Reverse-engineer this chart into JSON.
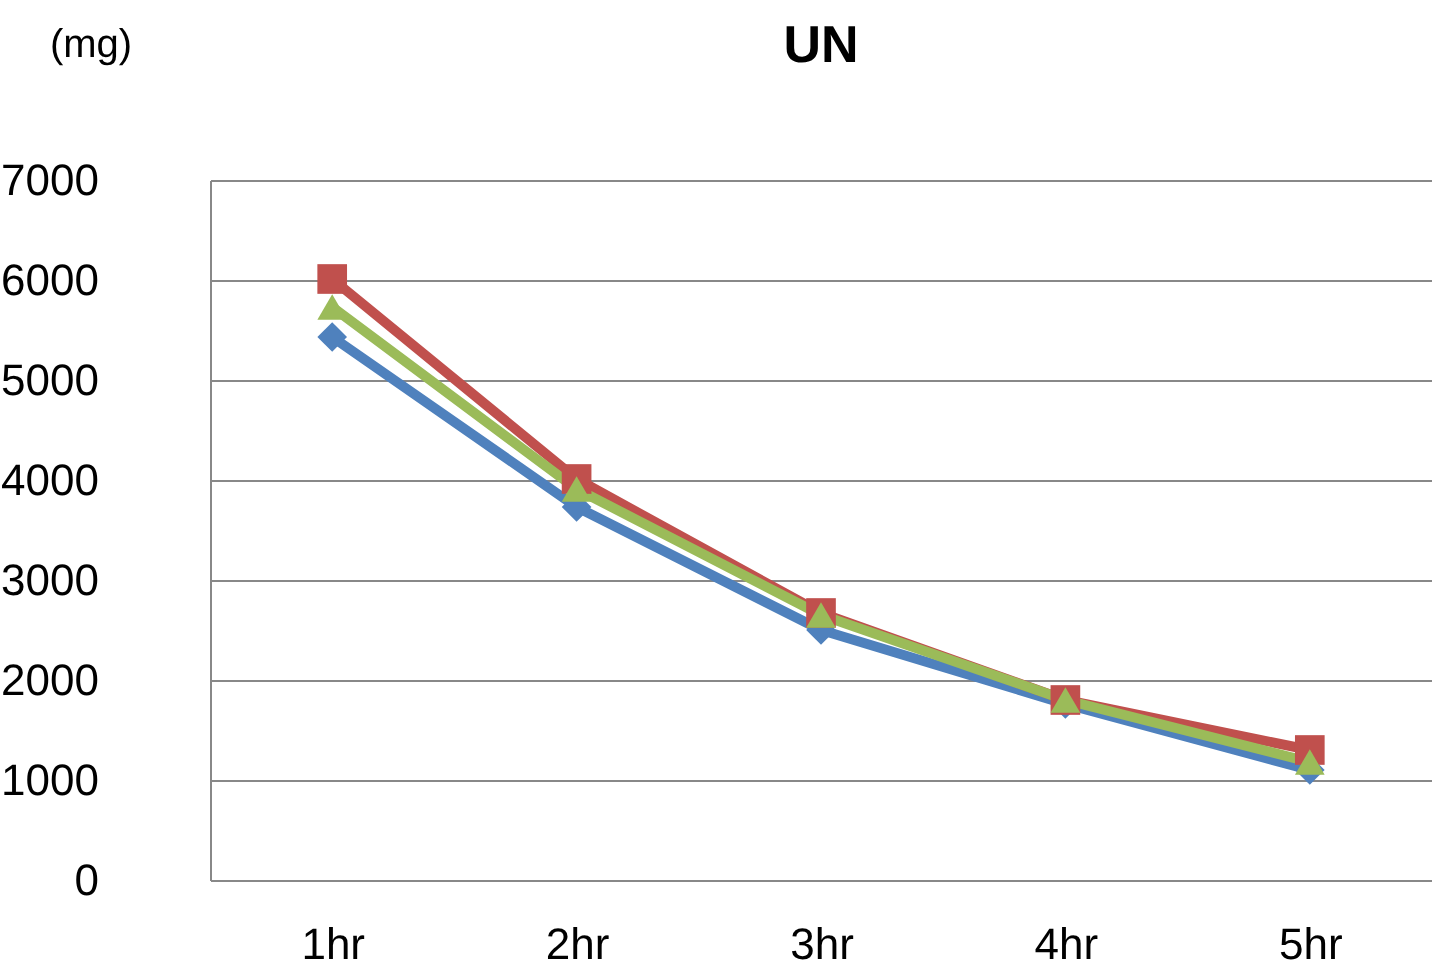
{
  "chart_data": {
    "type": "line",
    "title": "UN",
    "ylabel": "(mg)",
    "categories": [
      "1hr",
      "2hr",
      "3hr",
      "4hr",
      "5hr"
    ],
    "series": [
      {
        "color": "#4f81bd",
        "marker": "diamond",
        "values": [
          5430,
          3730,
          2500,
          1760,
          1100
        ]
      },
      {
        "color": "#c0504d",
        "marker": "square",
        "values": [
          6010,
          4010,
          2670,
          1800,
          1300
        ]
      },
      {
        "color": "#9bbb59",
        "marker": "triangle",
        "values": [
          5730,
          3910,
          2650,
          1800,
          1180
        ]
      }
    ],
    "ylim": [
      0,
      7000
    ],
    "yticks": [
      0,
      1000,
      2000,
      3000,
      4000,
      5000,
      6000,
      7000
    ],
    "grid": "y",
    "legend": false
  }
}
